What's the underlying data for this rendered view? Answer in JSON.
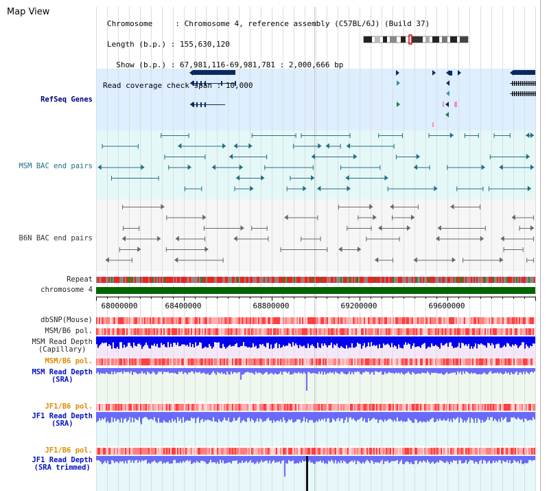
{
  "map_title": "Map View",
  "info": {
    "chromosome_label": "Chromosome     : ",
    "chromosome_value": "Chromosome 4, reference assembly (C57BL/6J) (Build 37)",
    "length_label": "Length (b.p.) : ",
    "length_value": "155,630,120",
    "show_label": "  Show (b.p.) : ",
    "show_value": "67,981,116-69,981,781 : 2,000,666 bp",
    "coverage_label": "Read coverage check span : ",
    "coverage_value": "10,000"
  },
  "tracks": {
    "refseq": "RefSeq Genes",
    "msm_bac": "MSM BAC end pairs",
    "b6n_bac": "B6N BAC end pairs",
    "repeat": "Repeat",
    "chromosome": "chromosome 4",
    "dbsnp": "dbSNP(Mouse)",
    "msm_b6_pol_1": "MSM/B6 pol.",
    "msm_read_depth_cap_1": "MSM Read Depth",
    "msm_read_depth_cap_2": "(Capillary)",
    "msm_b6_pol_2": "MSM/B6 pol.",
    "msm_read_depth_sra_1": "MSM Read Depth",
    "msm_read_depth_sra_2": "(SRA)",
    "jf1_b6_pol_1": "JF1/B6 pol.",
    "jf1_read_depth_1": "JF1 Read Depth",
    "jf1_read_depth_2": "(SRA)",
    "jf1_b6_pol_2": "JF1/B6 pol.",
    "jf1_read_depth_trim_1": "JF1 Read Depth",
    "jf1_read_depth_trim_2": "(SRA trimmed)"
  },
  "axis": {
    "ticks": [
      "68000000",
      "68400000",
      "68800000",
      "69200000",
      "69600000"
    ]
  },
  "colors": {
    "refseq_bg": "#ddeeff",
    "msm_bg": "#e5f8f8",
    "b6n_bg": "#f6f6f6",
    "chromosome": "#006400",
    "capillary": "#0000ee",
    "sra": "#6a6af8",
    "gene": "#0a2a5c",
    "msm_feature": "#1f6f80",
    "b6n_feature": "#666666"
  }
}
